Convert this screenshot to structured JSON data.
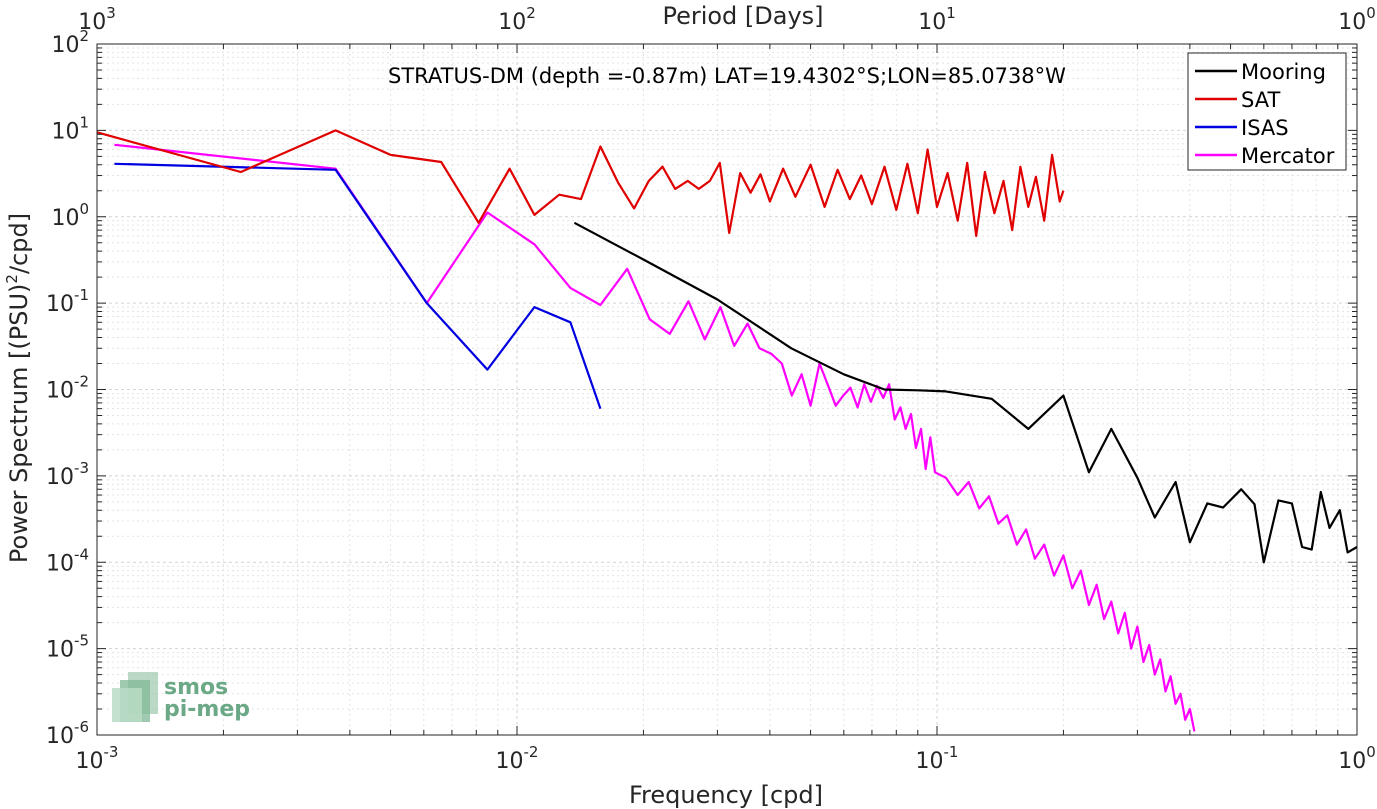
{
  "chart_data": {
    "type": "line",
    "title": "",
    "annotation": "STRATUS-DM (depth =-0.87m) LAT=19.4302°S;LON=85.0738°W",
    "xlabel": "Frequency [cpd]",
    "ylabel_main": "Power Spectrum [(PSU)",
    "ylabel_sup": "2",
    "ylabel_tail": "/cpd]",
    "top_xlabel": "Period [Days]",
    "x_scale": "log",
    "y_scale": "log",
    "xlim": [
      0.001,
      1
    ],
    "ylim": [
      1e-06,
      100
    ],
    "grid": true,
    "legend_position": "top-right",
    "x_ticks": [
      {
        "value": 0.001,
        "base": "10",
        "exp": "-3"
      },
      {
        "value": 0.01,
        "base": "10",
        "exp": "-2"
      },
      {
        "value": 0.1,
        "base": "10",
        "exp": "-1"
      },
      {
        "value": 1,
        "base": "10",
        "exp": "0"
      }
    ],
    "top_ticks": [
      {
        "value": 0.001,
        "base": "10",
        "exp": "3"
      },
      {
        "value": 0.01,
        "base": "10",
        "exp": "2"
      },
      {
        "value": 0.1,
        "base": "10",
        "exp": "1"
      },
      {
        "value": 1,
        "base": "10",
        "exp": "0"
      }
    ],
    "y_ticks": [
      {
        "value": 1e-06,
        "base": "10",
        "exp": "-6"
      },
      {
        "value": 1e-05,
        "base": "10",
        "exp": "-5"
      },
      {
        "value": 0.0001,
        "base": "10",
        "exp": "-4"
      },
      {
        "value": 0.001,
        "base": "10",
        "exp": "-3"
      },
      {
        "value": 0.01,
        "base": "10",
        "exp": "-2"
      },
      {
        "value": 0.1,
        "base": "10",
        "exp": "-1"
      },
      {
        "value": 1,
        "base": "10",
        "exp": "0"
      },
      {
        "value": 10,
        "base": "10",
        "exp": "1"
      },
      {
        "value": 100,
        "base": "10",
        "exp": "2"
      }
    ],
    "series": [
      {
        "name": "Mooring",
        "color": "#000000",
        "x": [
          0.0137,
          0.02,
          0.03,
          0.045,
          0.06,
          0.075,
          0.09,
          0.105,
          0.135,
          0.165,
          0.2,
          0.23,
          0.26,
          0.3,
          0.33,
          0.37,
          0.4,
          0.44,
          0.48,
          0.53,
          0.57,
          0.6,
          0.65,
          0.7,
          0.74,
          0.78,
          0.82,
          0.86,
          0.91,
          0.95,
          1.0
        ],
        "y": [
          0.85,
          0.32,
          0.11,
          0.03,
          0.015,
          0.01,
          0.0098,
          0.0095,
          0.0078,
          0.0035,
          0.0085,
          0.0011,
          0.0035,
          0.00095,
          0.00033,
          0.00085,
          0.00017,
          0.00048,
          0.00043,
          0.0007,
          0.00047,
          0.0001,
          0.00052,
          0.00048,
          0.00015,
          0.00014,
          0.00065,
          0.00025,
          0.0004,
          0.00013,
          0.00015
        ]
      },
      {
        "name": "SAT",
        "color": "#e00000",
        "x": [
          0.001,
          0.0022,
          0.0037,
          0.005,
          0.0066,
          0.0081,
          0.0096,
          0.011,
          0.0126,
          0.0142,
          0.0158,
          0.0174,
          0.019,
          0.0206,
          0.0222,
          0.0238,
          0.0255,
          0.0271,
          0.0288,
          0.0304,
          0.032,
          0.034,
          0.036,
          0.038,
          0.04,
          0.043,
          0.046,
          0.05,
          0.054,
          0.058,
          0.062,
          0.066,
          0.07,
          0.075,
          0.08,
          0.085,
          0.09,
          0.095,
          0.1,
          0.106,
          0.112,
          0.118,
          0.124,
          0.13,
          0.137,
          0.144,
          0.151,
          0.158,
          0.165,
          0.172,
          0.18,
          0.188,
          0.196,
          0.2
        ],
        "y": [
          9.5,
          3.3,
          10,
          5.2,
          4.3,
          0.85,
          3.6,
          1.05,
          1.8,
          1.6,
          6.5,
          2.5,
          1.25,
          2.6,
          3.8,
          2.1,
          2.6,
          2.1,
          2.6,
          4.2,
          0.65,
          3.2,
          1.9,
          3.1,
          1.5,
          3.6,
          1.7,
          4.0,
          1.3,
          3.5,
          1.6,
          3.0,
          1.4,
          3.8,
          1.2,
          4.1,
          1.1,
          6.0,
          1.3,
          3.2,
          0.9,
          4.2,
          0.6,
          3.3,
          1.1,
          2.6,
          0.7,
          3.8,
          1.3,
          2.9,
          0.9,
          5.2,
          1.5,
          2.0
        ]
      },
      {
        "name": "ISAS",
        "color": "#0000e0",
        "x": [
          0.0011,
          0.0037,
          0.0061,
          0.0085,
          0.011,
          0.0134,
          0.0158
        ],
        "y": [
          4.1,
          3.5,
          0.1,
          0.017,
          0.09,
          0.06,
          0.006
        ]
      },
      {
        "name": "Mercator",
        "color": "#ff00ff",
        "x": [
          0.0011,
          0.0037,
          0.0061,
          0.0085,
          0.011,
          0.0134,
          0.0158,
          0.0183,
          0.0207,
          0.0231,
          0.0256,
          0.028,
          0.0305,
          0.0329,
          0.0354,
          0.0378,
          0.0403,
          0.0427,
          0.0451,
          0.0476,
          0.05,
          0.0525,
          0.0549,
          0.0574,
          0.0598,
          0.0622,
          0.0647,
          0.0671,
          0.0696,
          0.072,
          0.0745,
          0.0769,
          0.0793,
          0.0818,
          0.0842,
          0.0867,
          0.0891,
          0.0916,
          0.094,
          0.0964,
          0.0989,
          0.105,
          0.112,
          0.119,
          0.126,
          0.133,
          0.14,
          0.147,
          0.155,
          0.163,
          0.171,
          0.18,
          0.19,
          0.2,
          0.21,
          0.22,
          0.23,
          0.24,
          0.25,
          0.26,
          0.27,
          0.28,
          0.29,
          0.3,
          0.31,
          0.32,
          0.33,
          0.34,
          0.35,
          0.36,
          0.37,
          0.38,
          0.39,
          0.4,
          0.41
        ],
        "y": [
          6.8,
          3.6,
          0.1,
          1.12,
          0.48,
          0.15,
          0.095,
          0.25,
          0.065,
          0.044,
          0.105,
          0.038,
          0.09,
          0.032,
          0.058,
          0.03,
          0.026,
          0.02,
          0.0085,
          0.015,
          0.0065,
          0.02,
          0.0115,
          0.0065,
          0.0085,
          0.0105,
          0.0062,
          0.0115,
          0.0072,
          0.011,
          0.008,
          0.0115,
          0.0045,
          0.0062,
          0.0035,
          0.0052,
          0.0021,
          0.0035,
          0.0012,
          0.0028,
          0.0011,
          0.00095,
          0.0006,
          0.00085,
          0.00042,
          0.00058,
          0.00028,
          0.00035,
          0.00016,
          0.00024,
          0.00011,
          0.00016,
          7e-05,
          0.00012,
          5e-05,
          8e-05,
          3.2e-05,
          5.5e-05,
          2.2e-05,
          3.5e-05,
          1.5e-05,
          2.6e-05,
          1e-05,
          1.8e-05,
          7e-06,
          1.1e-05,
          5e-06,
          7.5e-06,
          3.2e-06,
          4.8e-06,
          2.3e-06,
          3e-06,
          1.5e-06,
          2e-06,
          1.1e-06
        ]
      }
    ]
  },
  "logo": {
    "line1": "smos",
    "line2": "pi-mep"
  }
}
